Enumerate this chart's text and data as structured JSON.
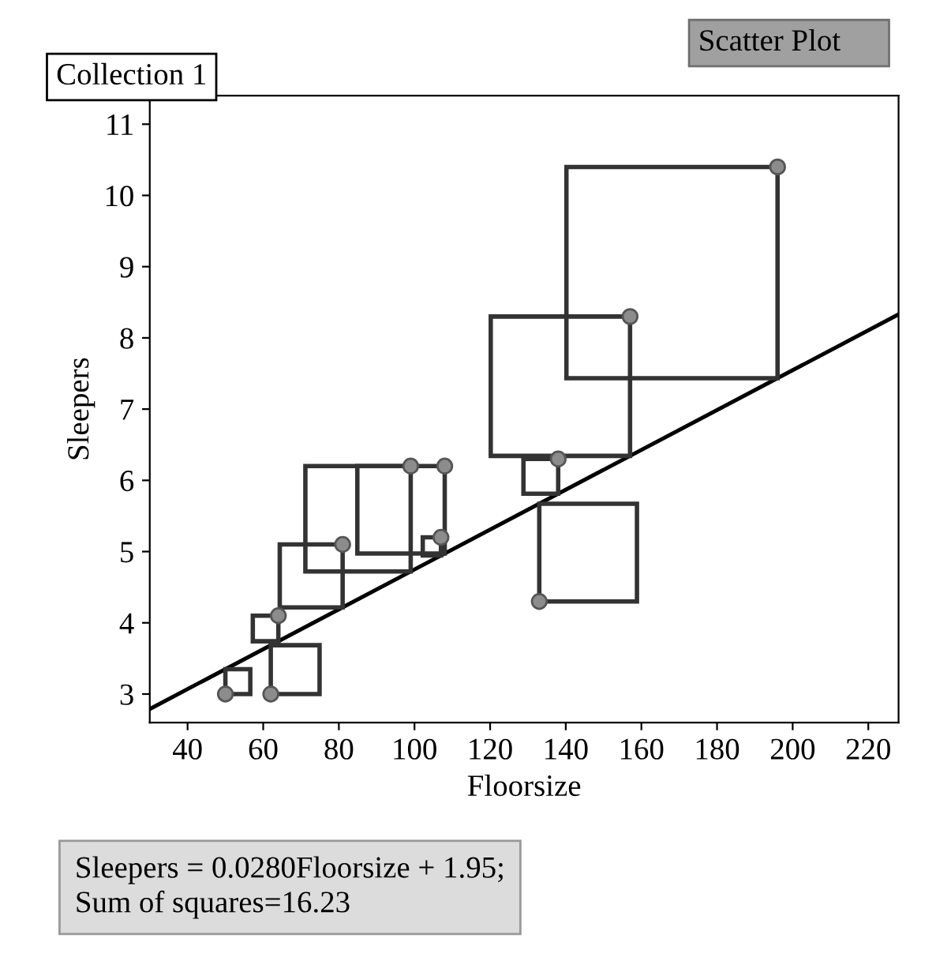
{
  "chart_data": {
    "type": "scatter",
    "title": "Collection 1",
    "subtitle": "Scatter Plot",
    "xlabel": "Floorsize",
    "ylabel": "Sleepers",
    "xlim": [
      30,
      228
    ],
    "ylim": [
      2.6,
      11.4
    ],
    "xticks": [
      40,
      60,
      80,
      100,
      120,
      140,
      160,
      180,
      200,
      220
    ],
    "yticks": [
      3,
      4,
      5,
      6,
      7,
      8,
      9,
      10,
      11
    ],
    "marker": "circle",
    "grid": false,
    "legend": false,
    "series": [
      {
        "color": "#8c8c8c",
        "x": [
          50,
          62,
          64,
          81,
          99,
          108,
          107,
          138,
          133,
          157,
          196
        ],
        "values": [
          3.0,
          3.0,
          4.1,
          5.1,
          6.2,
          6.2,
          5.2,
          6.3,
          4.3,
          8.3,
          10.4
        ]
      },
      {
        "type": "line",
        "marker": "none",
        "color": "#000000",
        "x": [
          30,
          228
        ],
        "values": [
          2.79,
          8.33
        ]
      }
    ],
    "annotations": [
      "Sleepers = 0.0280Floorsize + 1.95;\nSum of squares=16.23"
    ]
  }
}
